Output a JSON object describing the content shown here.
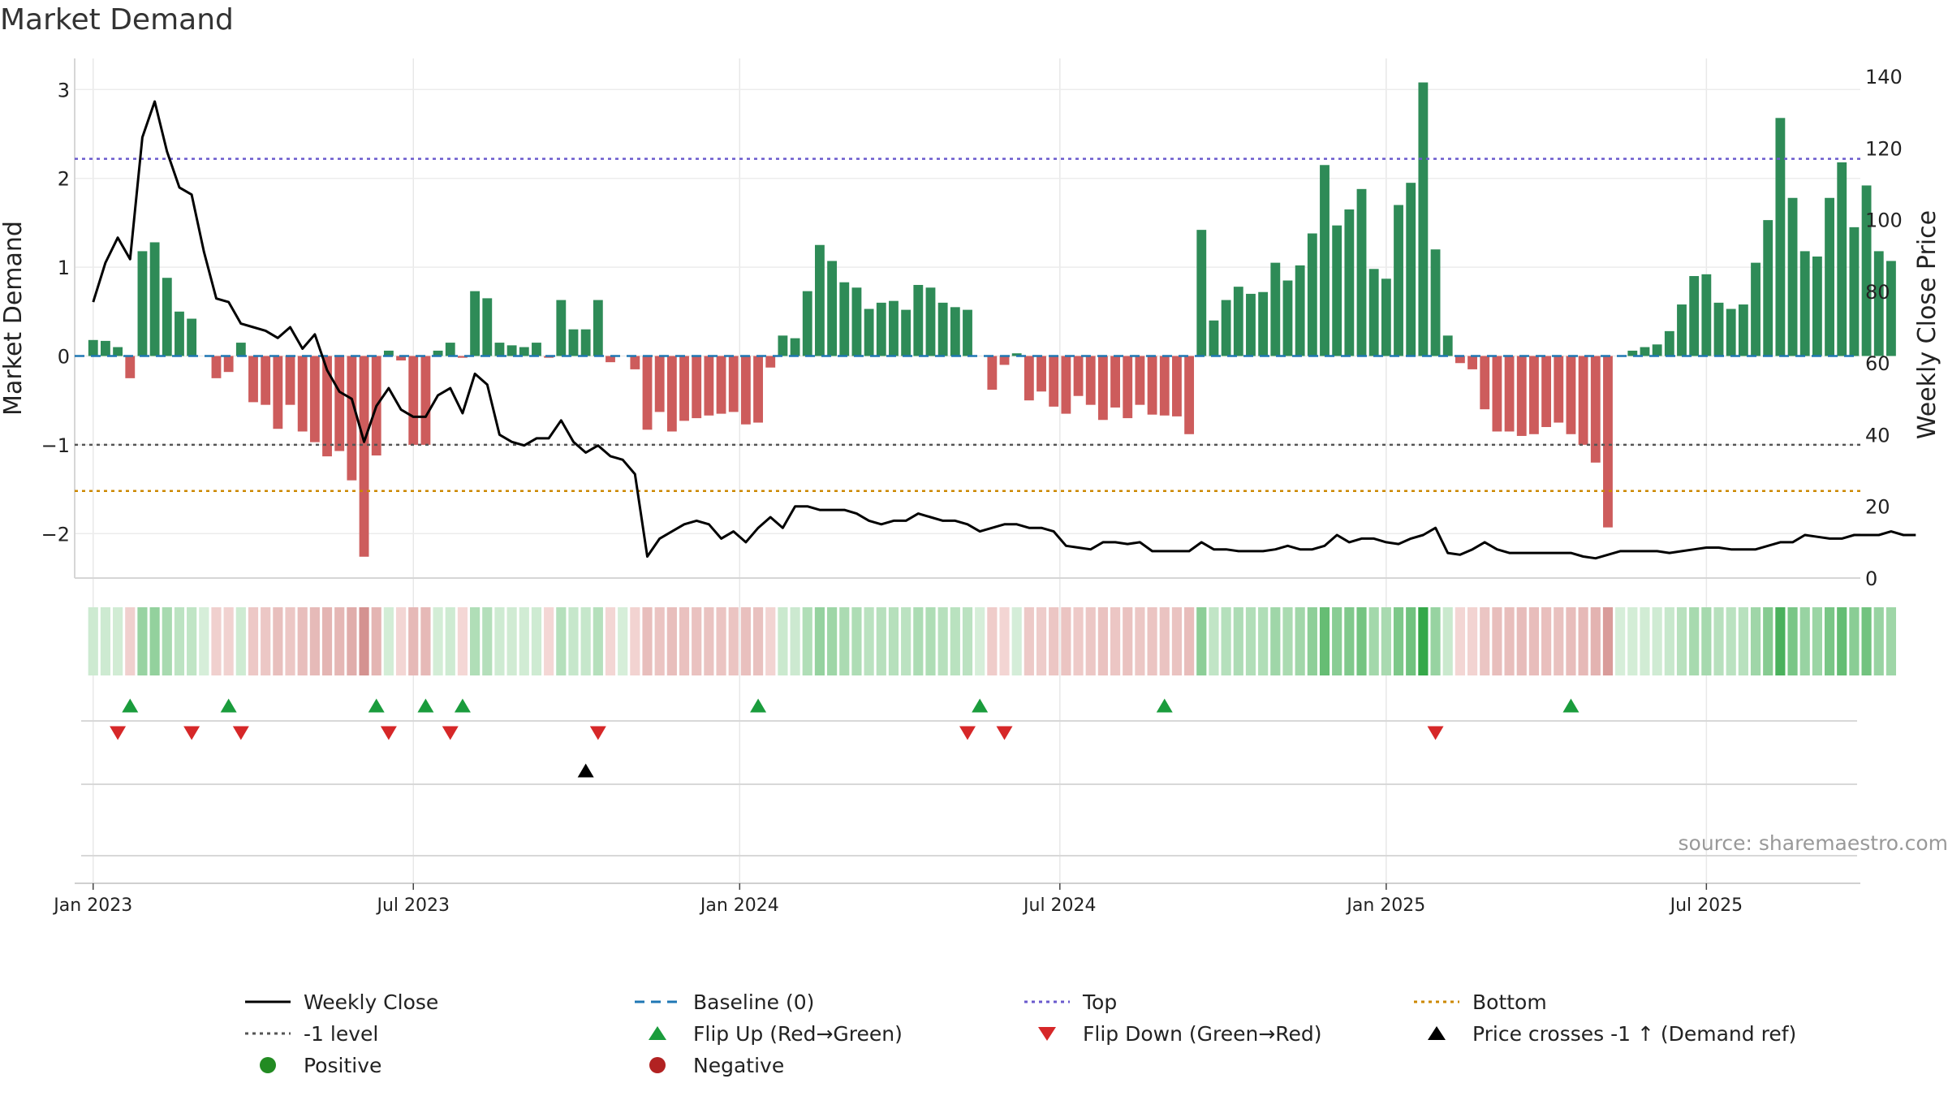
{
  "page": {
    "title": "Market Demand",
    "source": "source: sharemaestro.com"
  },
  "colors": {
    "positive_bar": "#2e8b57",
    "negative_bar": "#cd5c5c",
    "close_line": "#000000",
    "baseline": "#1f77b4",
    "top": "#6a5acd",
    "minus1": "#555555",
    "bottom": "#cc8800",
    "flip_up": "#1a9c3c",
    "flip_down": "#d62728",
    "cross": "#000000",
    "positive_dot": "#228b22",
    "negative_dot": "#b22222"
  },
  "chart_data": {
    "type": "bar+line",
    "title": "Market Demand",
    "ylabel": "Market Demand",
    "y2label": "Weekly Close Price",
    "ylim": [
      -2.5,
      3.35
    ],
    "y2lim": [
      0,
      145
    ],
    "yticks": [
      {
        "v": 3,
        "label": "3"
      },
      {
        "v": 2,
        "label": "2"
      },
      {
        "v": 1,
        "label": "1"
      },
      {
        "v": 0,
        "label": "0"
      },
      {
        "v": -1,
        "label": "−1"
      },
      {
        "v": -2,
        "label": "−2"
      }
    ],
    "y2ticks": [
      {
        "v": 140,
        "label": "140"
      },
      {
        "v": 120,
        "label": "120"
      },
      {
        "v": 100,
        "label": "100"
      },
      {
        "v": 80,
        "label": "80"
      },
      {
        "v": 60,
        "label": "60"
      },
      {
        "v": 40,
        "label": "40"
      },
      {
        "v": 20,
        "label": "20"
      },
      {
        "v": 0,
        "label": "0"
      }
    ],
    "x_range_weeks": [
      -1.5,
      143.5
    ],
    "xticks": [
      {
        "week": 0,
        "label": "Jan 2023"
      },
      {
        "week": 26,
        "label": "Jul 2023"
      },
      {
        "week": 52.5,
        "label": "Jan 2024"
      },
      {
        "week": 78.5,
        "label": "Jul 2024"
      },
      {
        "week": 105,
        "label": "Jan 2025"
      },
      {
        "week": 131,
        "label": "Jul 2025"
      }
    ],
    "levels": {
      "top": 2.22,
      "minus_one": -1.0,
      "bottom": -1.52,
      "baseline": 0
    },
    "demand": [
      0.18,
      0.17,
      0.1,
      -0.25,
      1.18,
      1.28,
      0.88,
      0.5,
      0.42,
      0.0,
      -0.25,
      -0.18,
      0.15,
      -0.52,
      -0.55,
      -0.82,
      -0.55,
      -0.85,
      -0.97,
      -1.13,
      -1.07,
      -1.4,
      -2.26,
      -1.12,
      0.06,
      -0.05,
      -1.0,
      -1.0,
      0.06,
      0.15,
      -0.02,
      0.73,
      0.65,
      0.15,
      0.12,
      0.1,
      0.15,
      -0.02,
      0.63,
      0.3,
      0.3,
      0.63,
      -0.07,
      0.0,
      -0.15,
      -0.83,
      -0.63,
      -0.85,
      -0.73,
      -0.7,
      -0.67,
      -0.65,
      -0.63,
      -0.77,
      -0.75,
      -0.13,
      0.23,
      0.2,
      0.73,
      1.25,
      1.07,
      0.83,
      0.77,
      0.53,
      0.6,
      0.62,
      0.52,
      0.8,
      0.77,
      0.6,
      0.55,
      0.52,
      0.0,
      -0.38,
      -0.1,
      0.03,
      -0.5,
      -0.4,
      -0.57,
      -0.65,
      -0.45,
      -0.55,
      -0.72,
      -0.58,
      -0.7,
      -0.55,
      -0.66,
      -0.67,
      -0.68,
      -0.88,
      1.42,
      0.4,
      0.63,
      0.78,
      0.7,
      0.72,
      1.05,
      0.85,
      1.02,
      1.38,
      2.15,
      1.47,
      1.65,
      1.88,
      0.98,
      0.87,
      1.7,
      1.95,
      3.08,
      1.2,
      0.23,
      -0.08,
      -0.15,
      -0.6,
      -0.85,
      -0.85,
      -0.9,
      -0.88,
      -0.8,
      -0.75,
      -0.88,
      -1.0,
      -1.2,
      -1.93,
      0.0,
      0.06,
      0.1,
      0.13,
      0.28,
      0.58,
      0.9,
      0.92,
      0.6,
      0.53,
      0.58,
      1.05,
      1.53,
      2.68,
      1.78,
      1.18,
      1.12,
      1.78,
      2.18,
      1.45,
      1.92,
      1.18,
      1.07
    ],
    "close": [
      77,
      88,
      95,
      89,
      123,
      133,
      119,
      109,
      107,
      91,
      78,
      77,
      71,
      70,
      69,
      67,
      70,
      64,
      68,
      58,
      52,
      50,
      38,
      48,
      53,
      47,
      45,
      45,
      51,
      53,
      46,
      57,
      54,
      40,
      38,
      37,
      39,
      39,
      44,
      38,
      35,
      37,
      34,
      33,
      29,
      6,
      11,
      13,
      15,
      16,
      15,
      11,
      13,
      10,
      14,
      17,
      14,
      20,
      20,
      19,
      19,
      19,
      18,
      16,
      15,
      16,
      16,
      18,
      17,
      16,
      16,
      15,
      13,
      14,
      15,
      15,
      14,
      14,
      13,
      9,
      8.5,
      8,
      10,
      10,
      9.5,
      10,
      7.5,
      7.5,
      7.5,
      7.5,
      10,
      8,
      8,
      7.5,
      7.5,
      7.5,
      8,
      9,
      8,
      8,
      9,
      12,
      10,
      11,
      11,
      10,
      9.5,
      11,
      12,
      14,
      7,
      6.5,
      8,
      10,
      8,
      7,
      7,
      7,
      7,
      7,
      7,
      6,
      5.5,
      6.5,
      7.5,
      7.5,
      7.5,
      7.5,
      7,
      7.5,
      8,
      8.5,
      8.5,
      8,
      8,
      8,
      9,
      10,
      10,
      12,
      11.5,
      11,
      11,
      12,
      12,
      12,
      13,
      12,
      12
    ],
    "flip_up_weeks": [
      3,
      11,
      23,
      27,
      30,
      54,
      72,
      87,
      120
    ],
    "flip_down_weeks": [
      2,
      8,
      12,
      24,
      29,
      41,
      71,
      74,
      109
    ],
    "price_cross_weeks": [
      40
    ]
  },
  "legend": [
    {
      "key": "close",
      "label": "Weekly Close",
      "marker": "line",
      "color_key": "close_line"
    },
    {
      "key": "baseline",
      "label": "Baseline (0)",
      "marker": "dash",
      "color_key": "baseline"
    },
    {
      "key": "top",
      "label": "Top",
      "marker": "dot-line",
      "color_key": "top"
    },
    {
      "key": "bottom",
      "label": "Bottom",
      "marker": "dot-line",
      "color_key": "bottom"
    },
    {
      "key": "minus1",
      "label": "-1 level",
      "marker": "dot-line",
      "color_key": "minus1"
    },
    {
      "key": "flip_up",
      "label": "Flip Up (Red→Green)",
      "marker": "tri-up",
      "color_key": "flip_up"
    },
    {
      "key": "flip_down",
      "label": "Flip Down (Green→Red)",
      "marker": "tri-down",
      "color_key": "flip_down"
    },
    {
      "key": "cross",
      "label": "Price crosses -1 ↑ (Demand ref)",
      "marker": "tri-up",
      "color_key": "cross"
    },
    {
      "key": "positive",
      "label": "Positive",
      "marker": "circle",
      "color_key": "positive_dot"
    },
    {
      "key": "negative",
      "label": "Negative",
      "marker": "circle",
      "color_key": "negative_dot"
    }
  ]
}
